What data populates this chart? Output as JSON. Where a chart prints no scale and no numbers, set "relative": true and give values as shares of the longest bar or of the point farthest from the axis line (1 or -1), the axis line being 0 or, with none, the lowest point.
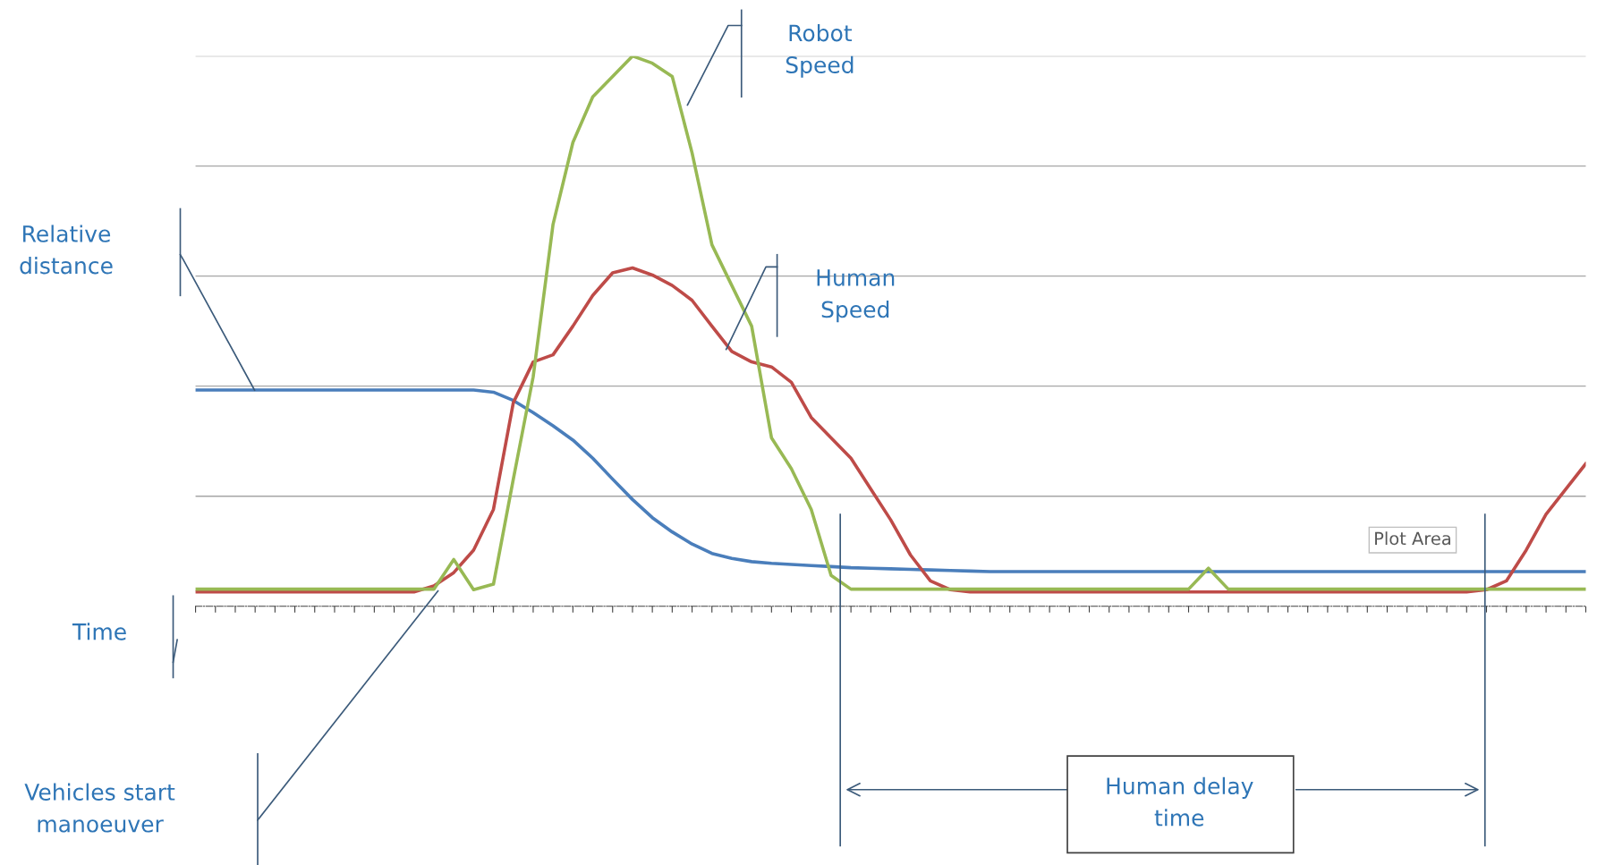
{
  "chart_data": {
    "type": "line",
    "relative": true,
    "categories": [
      null,
      null,
      null,
      null,
      null,
      null,
      null,
      null,
      null,
      null,
      null,
      null,
      null,
      null,
      null,
      null,
      null,
      null,
      null,
      null,
      null,
      null,
      null,
      null,
      null,
      null,
      null,
      null,
      null,
      null,
      null,
      null,
      null,
      null,
      null,
      null,
      null,
      null,
      null,
      null,
      null,
      null,
      null,
      null,
      null,
      null,
      null,
      null,
      null,
      null,
      null,
      null,
      null,
      null,
      null,
      null,
      null,
      null,
      null,
      null,
      null,
      null,
      null,
      null,
      null,
      null,
      null,
      null,
      null,
      null,
      null
    ],
    "series": [
      {
        "color": "#4a7ebb",
        "values": [
          0.393,
          0.393,
          0.393,
          0.393,
          0.393,
          0.393,
          0.393,
          0.393,
          0.393,
          0.393,
          0.393,
          0.393,
          0.393,
          0.393,
          0.393,
          0.389,
          0.374,
          0.352,
          0.328,
          0.302,
          0.269,
          0.231,
          0.194,
          0.161,
          0.135,
          0.113,
          0.096,
          0.087,
          0.081,
          0.078,
          0.076,
          0.074,
          0.072,
          0.07,
          0.069,
          0.068,
          0.067,
          0.066,
          0.065,
          0.064,
          0.063,
          0.063,
          0.063,
          0.063,
          0.063,
          0.063,
          0.063,
          0.063,
          0.063,
          0.063,
          0.063,
          0.063,
          0.063,
          0.063,
          0.063,
          0.063,
          0.063,
          0.063,
          0.063,
          0.063,
          0.063,
          0.063,
          0.063,
          0.063,
          0.063,
          0.063,
          0.063,
          0.063,
          0.063,
          0.063,
          0.063
        ]
      },
      {
        "color": "#be4b48",
        "values": [
          0.026,
          0.026,
          0.026,
          0.026,
          0.026,
          0.026,
          0.026,
          0.026,
          0.026,
          0.026,
          0.026,
          0.026,
          0.037,
          0.061,
          0.102,
          0.176,
          0.37,
          0.444,
          0.457,
          0.509,
          0.565,
          0.606,
          0.615,
          0.602,
          0.583,
          0.556,
          0.509,
          0.463,
          0.444,
          0.435,
          0.407,
          0.343,
          0.306,
          0.269,
          0.213,
          0.157,
          0.093,
          0.046,
          0.03,
          0.026,
          0.026,
          0.026,
          0.026,
          0.026,
          0.026,
          0.026,
          0.026,
          0.026,
          0.026,
          0.026,
          0.026,
          0.026,
          0.026,
          0.026,
          0.026,
          0.026,
          0.026,
          0.026,
          0.026,
          0.026,
          0.026,
          0.026,
          0.026,
          0.026,
          0.026,
          0.03,
          0.046,
          0.102,
          0.167,
          0.213,
          0.259
        ]
      },
      {
        "color": "#98b954",
        "values": [
          0.031,
          0.031,
          0.031,
          0.031,
          0.031,
          0.031,
          0.031,
          0.031,
          0.031,
          0.031,
          0.031,
          0.031,
          0.031,
          0.085,
          0.03,
          0.04,
          0.231,
          0.417,
          0.694,
          0.843,
          0.926,
          0.963,
          1.0,
          0.987,
          0.963,
          0.824,
          0.657,
          0.583,
          0.509,
          0.306,
          0.25,
          0.176,
          0.056,
          0.031,
          0.031,
          0.031,
          0.031,
          0.031,
          0.031,
          0.031,
          0.031,
          0.031,
          0.031,
          0.031,
          0.031,
          0.031,
          0.031,
          0.031,
          0.031,
          0.031,
          0.031,
          0.069,
          0.031,
          0.031,
          0.031,
          0.031,
          0.031,
          0.031,
          0.031,
          0.031,
          0.031,
          0.031,
          0.031,
          0.031,
          0.031,
          0.031,
          0.031,
          0.031,
          0.031,
          0.031,
          0.031
        ]
      }
    ],
    "grid": "y",
    "annotations": [
      "Robot\nSpeed",
      "Human\nSpeed",
      "Relative\ndistance",
      "Time",
      "Vehicles start\nmanoeuver",
      "Human delay\ntime",
      "Plot Area"
    ]
  }
}
